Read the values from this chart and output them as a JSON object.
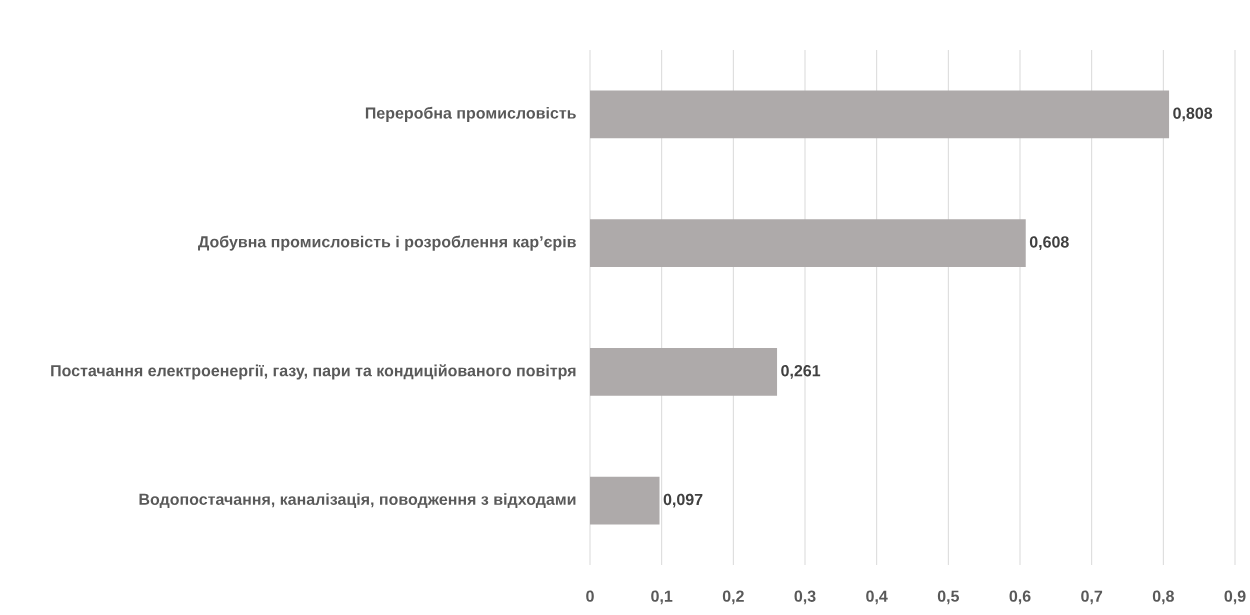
{
  "chart_data": {
    "type": "bar",
    "orientation": "horizontal",
    "categories": [
      "Переробна промисловість",
      "Добувна промисловість і розроблення кар’єрів",
      "Постачання електроенергії, газу, пари та кондиційованого повітря",
      "Водопостачання, каналізація, поводження з відходами"
    ],
    "values": [
      0.808,
      0.608,
      0.261,
      0.097
    ],
    "value_labels": [
      "0,808",
      "0,608",
      "0,261",
      "0,097"
    ],
    "color": "#aeaaaa",
    "xlim": [
      0,
      0.9
    ],
    "xticks": [
      0,
      {
        "value": 0.1,
        "label": "0,1"
      },
      {
        "value": 0.2,
        "label": "0,2"
      },
      {
        "value": 0.3,
        "label": "0,3"
      },
      {
        "value": 0.4,
        "label": "0,4"
      },
      {
        "value": 0.5,
        "label": "0,5"
      },
      {
        "value": 0.6,
        "label": "0,6"
      },
      {
        "value": 0.7,
        "label": "0,7"
      },
      {
        "value": 0.8,
        "label": "0,8"
      },
      {
        "value": 0.9,
        "label": "0,9"
      }
    ],
    "grid": "x"
  }
}
